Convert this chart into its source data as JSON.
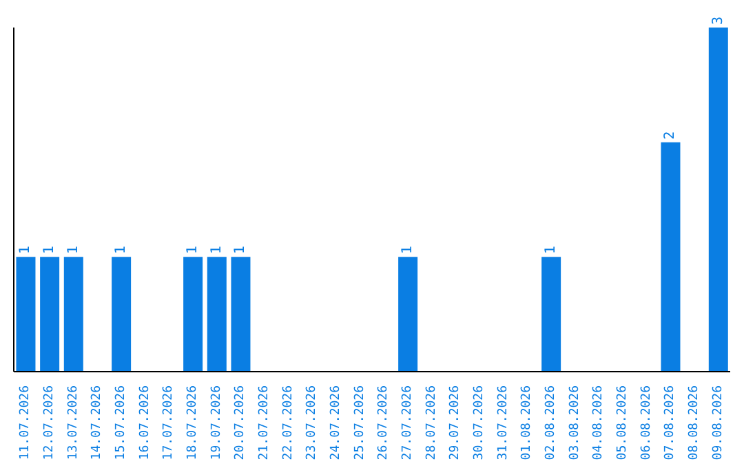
{
  "chart_data": {
    "type": "bar",
    "categories": [
      "11.07.2026",
      "12.07.2026",
      "13.07.2026",
      "14.07.2026",
      "15.07.2026",
      "16.07.2026",
      "17.07.2026",
      "18.07.2026",
      "19.07.2026",
      "20.07.2026",
      "21.07.2026",
      "22.07.2026",
      "23.07.2026",
      "24.07.2026",
      "25.07.2026",
      "26.07.2026",
      "27.07.2026",
      "28.07.2026",
      "29.07.2026",
      "30.07.2026",
      "31.07.2026",
      "01.08.2026",
      "02.08.2026",
      "03.08.2026",
      "04.08.2026",
      "05.08.2026",
      "06.08.2026",
      "07.08.2026",
      "08.08.2026",
      "09.08.2026"
    ],
    "values": [
      1,
      1,
      1,
      0,
      1,
      0,
      0,
      1,
      1,
      1,
      0,
      0,
      0,
      0,
      0,
      0,
      1,
      0,
      0,
      0,
      0,
      0,
      1,
      0,
      0,
      0,
      0,
      2,
      0,
      3
    ],
    "value_labels": [
      "1",
      "1",
      "1",
      null,
      "1",
      null,
      null,
      "1",
      "1",
      "1",
      null,
      null,
      null,
      null,
      null,
      null,
      "1",
      null,
      null,
      null,
      null,
      null,
      "1",
      null,
      null,
      null,
      null,
      "2",
      null,
      "3"
    ],
    "color": "#0a7ee3",
    "grid": false
  }
}
